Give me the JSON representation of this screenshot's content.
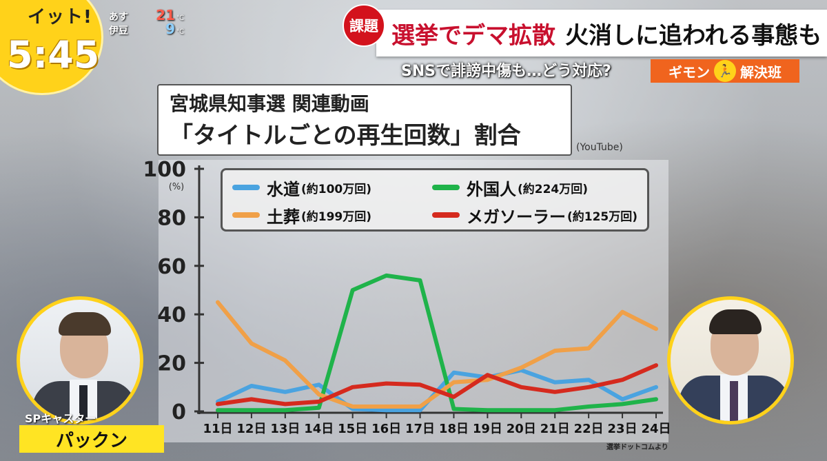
{
  "show": {
    "logo_title": "イット!",
    "clock": "5:45"
  },
  "weather": {
    "rows": [
      {
        "label": "あす",
        "temp": "21",
        "unit": "℃"
      },
      {
        "label": "伊豆",
        "temp": "9",
        "unit": "℃"
      }
    ]
  },
  "headline": {
    "badge": "課題",
    "main": "選挙でデマ拡散",
    "rest": "火消しに追われる事態も",
    "sub": "SNSで誹謗中傷も…どう対応?",
    "corner_left": "ギモン",
    "corner_right": "解決班"
  },
  "chart_title": {
    "line1": "宮城県知事選 関連動画",
    "line2": "「タイトルごとの再生回数」割合"
  },
  "source_top": "(YouTube)",
  "source_bottom": "選挙ドットコムより",
  "chart_data": {
    "type": "line",
    "ylabel": "(%)",
    "ylim": [
      0,
      100
    ],
    "yticks": [
      0,
      20,
      40,
      60,
      80,
      100
    ],
    "categories": [
      "11日",
      "12日",
      "13日",
      "14日",
      "15日",
      "16日",
      "17日",
      "18日",
      "19日",
      "20日",
      "21日",
      "22日",
      "23日",
      "24日"
    ],
    "series": [
      {
        "name": "水道",
        "note": "(約100万回)",
        "color": "#4aa3e0",
        "values": [
          4,
          10.5,
          8,
          11,
          1,
          0.5,
          0.5,
          16,
          14,
          17,
          12,
          13,
          5,
          10
        ]
      },
      {
        "name": "外国人",
        "note": "(約224万回)",
        "color": "#1fb34a",
        "values": [
          0.5,
          0.5,
          0.5,
          1.5,
          50,
          56,
          54,
          1,
          0.5,
          0.5,
          0.5,
          2,
          3,
          5
        ]
      },
      {
        "name": "土葬",
        "note": "(約199万回)",
        "color": "#f0a048",
        "values": [
          45,
          28,
          21,
          7,
          2,
          2,
          2,
          12,
          13,
          18,
          25,
          26,
          41,
          34
        ]
      },
      {
        "name": "メガソーラー",
        "note": "(約125万回)",
        "color": "#d52a1e",
        "values": [
          3,
          5,
          3,
          4,
          10,
          11.5,
          11,
          6,
          15,
          10,
          8,
          10,
          13,
          19
        ]
      }
    ]
  },
  "casters": {
    "left_tag": "SPキャスター",
    "left_name": "パックン"
  }
}
